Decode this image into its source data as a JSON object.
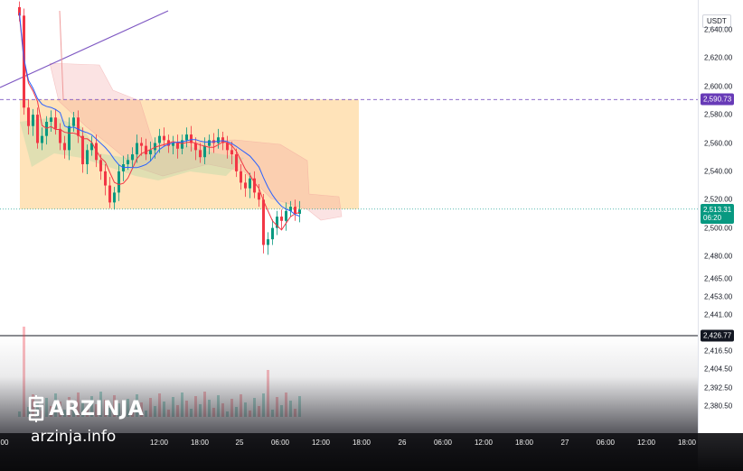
{
  "chart_data": {
    "type": "candlestick",
    "symbol_unit": "USDT",
    "price_axis": {
      "ticks": [
        "2,640.00",
        "2,620.00",
        "2,600.00",
        "2,580.00",
        "2,560.00",
        "2,540.00",
        "2,520.00",
        "2,500.00",
        "2,480.00",
        "2,465.00",
        "2,453.00",
        "2,441.00",
        "2,416.50",
        "2,404.50",
        "2,392.50",
        "2,380.50"
      ],
      "scale": "non-linear (compressed below 2,480)"
    },
    "time_axis": {
      "labels": [
        "00",
        "12:00",
        "18:00",
        "25",
        "06:00",
        "12:00",
        "18:00",
        "26",
        "06:00",
        "12:00",
        "18:00",
        "27",
        "06:00",
        "12:00",
        "18:00"
      ]
    },
    "price_tags": [
      {
        "name": "alert-level",
        "value": "2,590.73",
        "color": "#673ab7"
      },
      {
        "name": "last-price",
        "value": "2,513.31",
        "countdown": "06:20",
        "color": "#089981"
      },
      {
        "name": "crosshair-level",
        "value": "2,426.77",
        "color": "#131722"
      }
    ],
    "horizontal_lines": [
      {
        "price": 2590.73,
        "style": "dashed",
        "color": "#7e57c2"
      },
      {
        "price": 2513.31,
        "style": "dotted",
        "color": "#26a69a"
      },
      {
        "price": 2426.77,
        "style": "solid",
        "color": "#131722"
      }
    ],
    "range_box": {
      "top": 2590.73,
      "bottom": 2513.31,
      "color": "#ffcc80"
    },
    "close_series": [
      2650,
      2585,
      2572,
      2580,
      2560,
      2565,
      2575,
      2578,
      2570,
      2560,
      2555,
      2572,
      2578,
      2565,
      2545,
      2555,
      2560,
      2548,
      2540,
      2530,
      2518,
      2525,
      2540,
      2545,
      2548,
      2552,
      2560,
      2558,
      2552,
      2555,
      2560,
      2565,
      2562,
      2558,
      2560,
      2556,
      2562,
      2566,
      2560,
      2555,
      2550,
      2558,
      2562,
      2560,
      2564,
      2560,
      2555,
      2552,
      2540,
      2532,
      2528,
      2535,
      2525,
      2520,
      2488,
      2492,
      2500,
      2508,
      2505,
      2512,
      2515,
      2510,
      2513
    ]
  },
  "logo": {
    "name": "ARZINJA",
    "site": "arzinja.info"
  }
}
